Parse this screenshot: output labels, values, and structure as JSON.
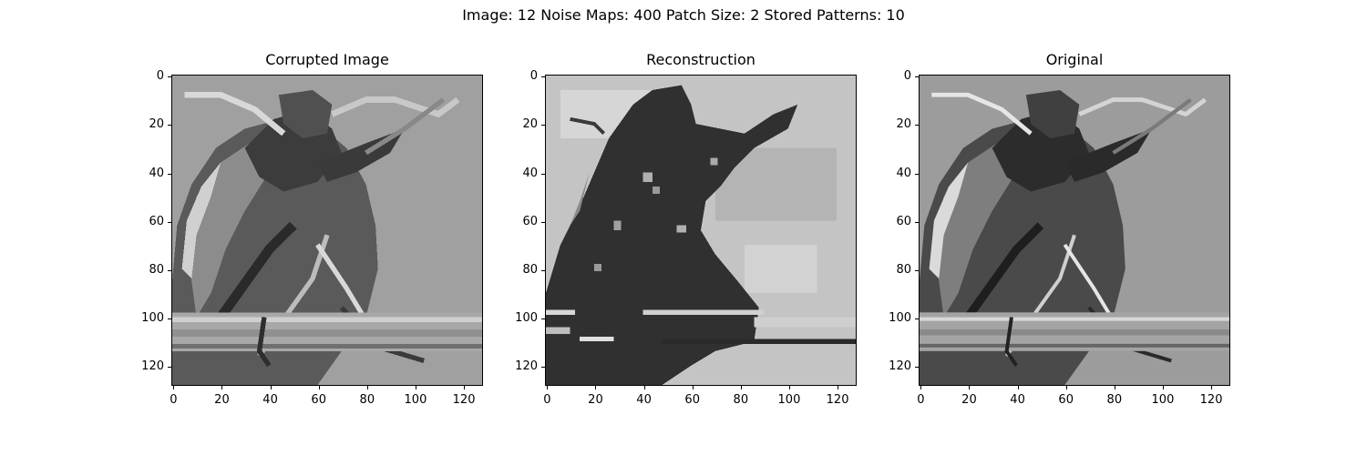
{
  "figure": {
    "suptitle": "Image: 12 Noise Maps: 400 Patch Size: 2 Stored Patterns: 10"
  },
  "panels": [
    {
      "title": "Corrupted Image",
      "kind": "corrupted"
    },
    {
      "title": "Reconstruction",
      "kind": "reconstruction"
    },
    {
      "title": "Original",
      "kind": "original"
    }
  ],
  "axes": {
    "x_ticks": [
      "0",
      "20",
      "40",
      "60",
      "80",
      "100",
      "120"
    ],
    "y_ticks": [
      "0",
      "20",
      "40",
      "60",
      "80",
      "100",
      "120"
    ],
    "range": [
      0,
      128
    ]
  },
  "image": {
    "colormap": "gray",
    "subject": "beetle on a stem",
    "resolution": [
      128,
      128
    ]
  }
}
